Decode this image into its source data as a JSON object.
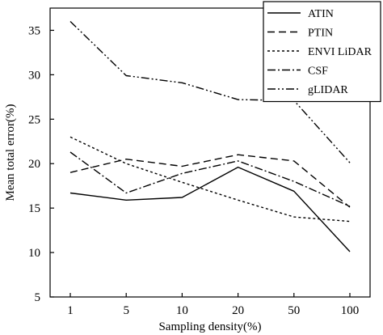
{
  "chart_data": {
    "type": "line",
    "xlabel": "Sampling density(%)",
    "ylabel": "Mean total error(%)",
    "categories": [
      "1",
      "5",
      "10",
      "20",
      "50",
      "100"
    ],
    "ylim": [
      5,
      37.5
    ],
    "yticks": [
      5,
      10,
      15,
      20,
      25,
      30,
      35
    ],
    "grid": false,
    "legend_position": "top-right",
    "series": [
      {
        "name": "ATIN",
        "dash": "solid",
        "color": "#000000",
        "values": [
          16.7,
          15.9,
          16.2,
          19.6,
          16.9,
          10.1
        ]
      },
      {
        "name": "PTIN",
        "dash": "dashed",
        "color": "#000000",
        "values": [
          19.0,
          20.5,
          19.7,
          21.0,
          20.3,
          15.1
        ]
      },
      {
        "name": "ENVI LiDAR",
        "dash": "dotted",
        "color": "#000000",
        "values": [
          23.0,
          20.0,
          17.9,
          15.9,
          14.0,
          13.5
        ]
      },
      {
        "name": "CSF",
        "dash": "dashdot",
        "color": "#000000",
        "values": [
          21.3,
          16.7,
          18.9,
          20.3,
          18.0,
          15.2
        ]
      },
      {
        "name": "gLIDAR",
        "dash": "dashdotdot",
        "color": "#000000",
        "values": [
          36.0,
          29.9,
          29.1,
          27.2,
          27.1,
          20.1
        ]
      }
    ]
  }
}
